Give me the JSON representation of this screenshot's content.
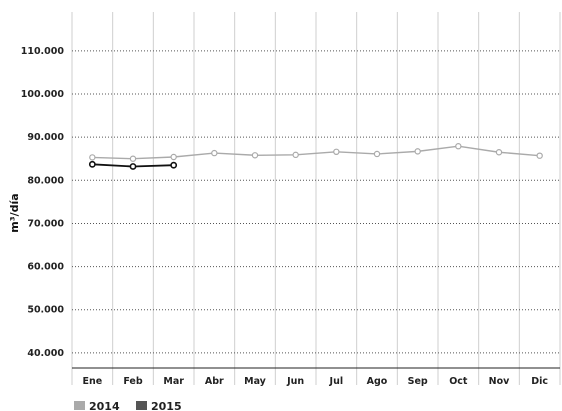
{
  "chart_data": {
    "type": "line",
    "title": "",
    "xlabel": "",
    "ylabel": "m³/día",
    "categories": [
      "Ene",
      "Feb",
      "Mar",
      "Abr",
      "May",
      "Jun",
      "Jul",
      "Ago",
      "Sep",
      "Oct",
      "Nov",
      "Dic"
    ],
    "y_ticks": [
      "40.000",
      "50.000",
      "60.000",
      "70.000",
      "80.000",
      "90.000",
      "100.000",
      "110.000"
    ],
    "y_tick_values": [
      40000,
      50000,
      60000,
      70000,
      80000,
      90000,
      100000,
      110000
    ],
    "ylim": [
      36500,
      119000
    ],
    "grid": "vertical and horizontal",
    "legend_position": "bottom-left",
    "series": [
      {
        "name": "2014",
        "color": "#aaaaaa",
        "values": [
          85300,
          85000,
          85400,
          86300,
          85800,
          85900,
          86600,
          86100,
          86700,
          87900,
          86500,
          85700
        ]
      },
      {
        "name": "2015",
        "color": "#555555",
        "line_color": "#111111",
        "values": [
          83700,
          83200,
          83500,
          null,
          null,
          null,
          null,
          null,
          null,
          null,
          null,
          null
        ]
      }
    ]
  }
}
